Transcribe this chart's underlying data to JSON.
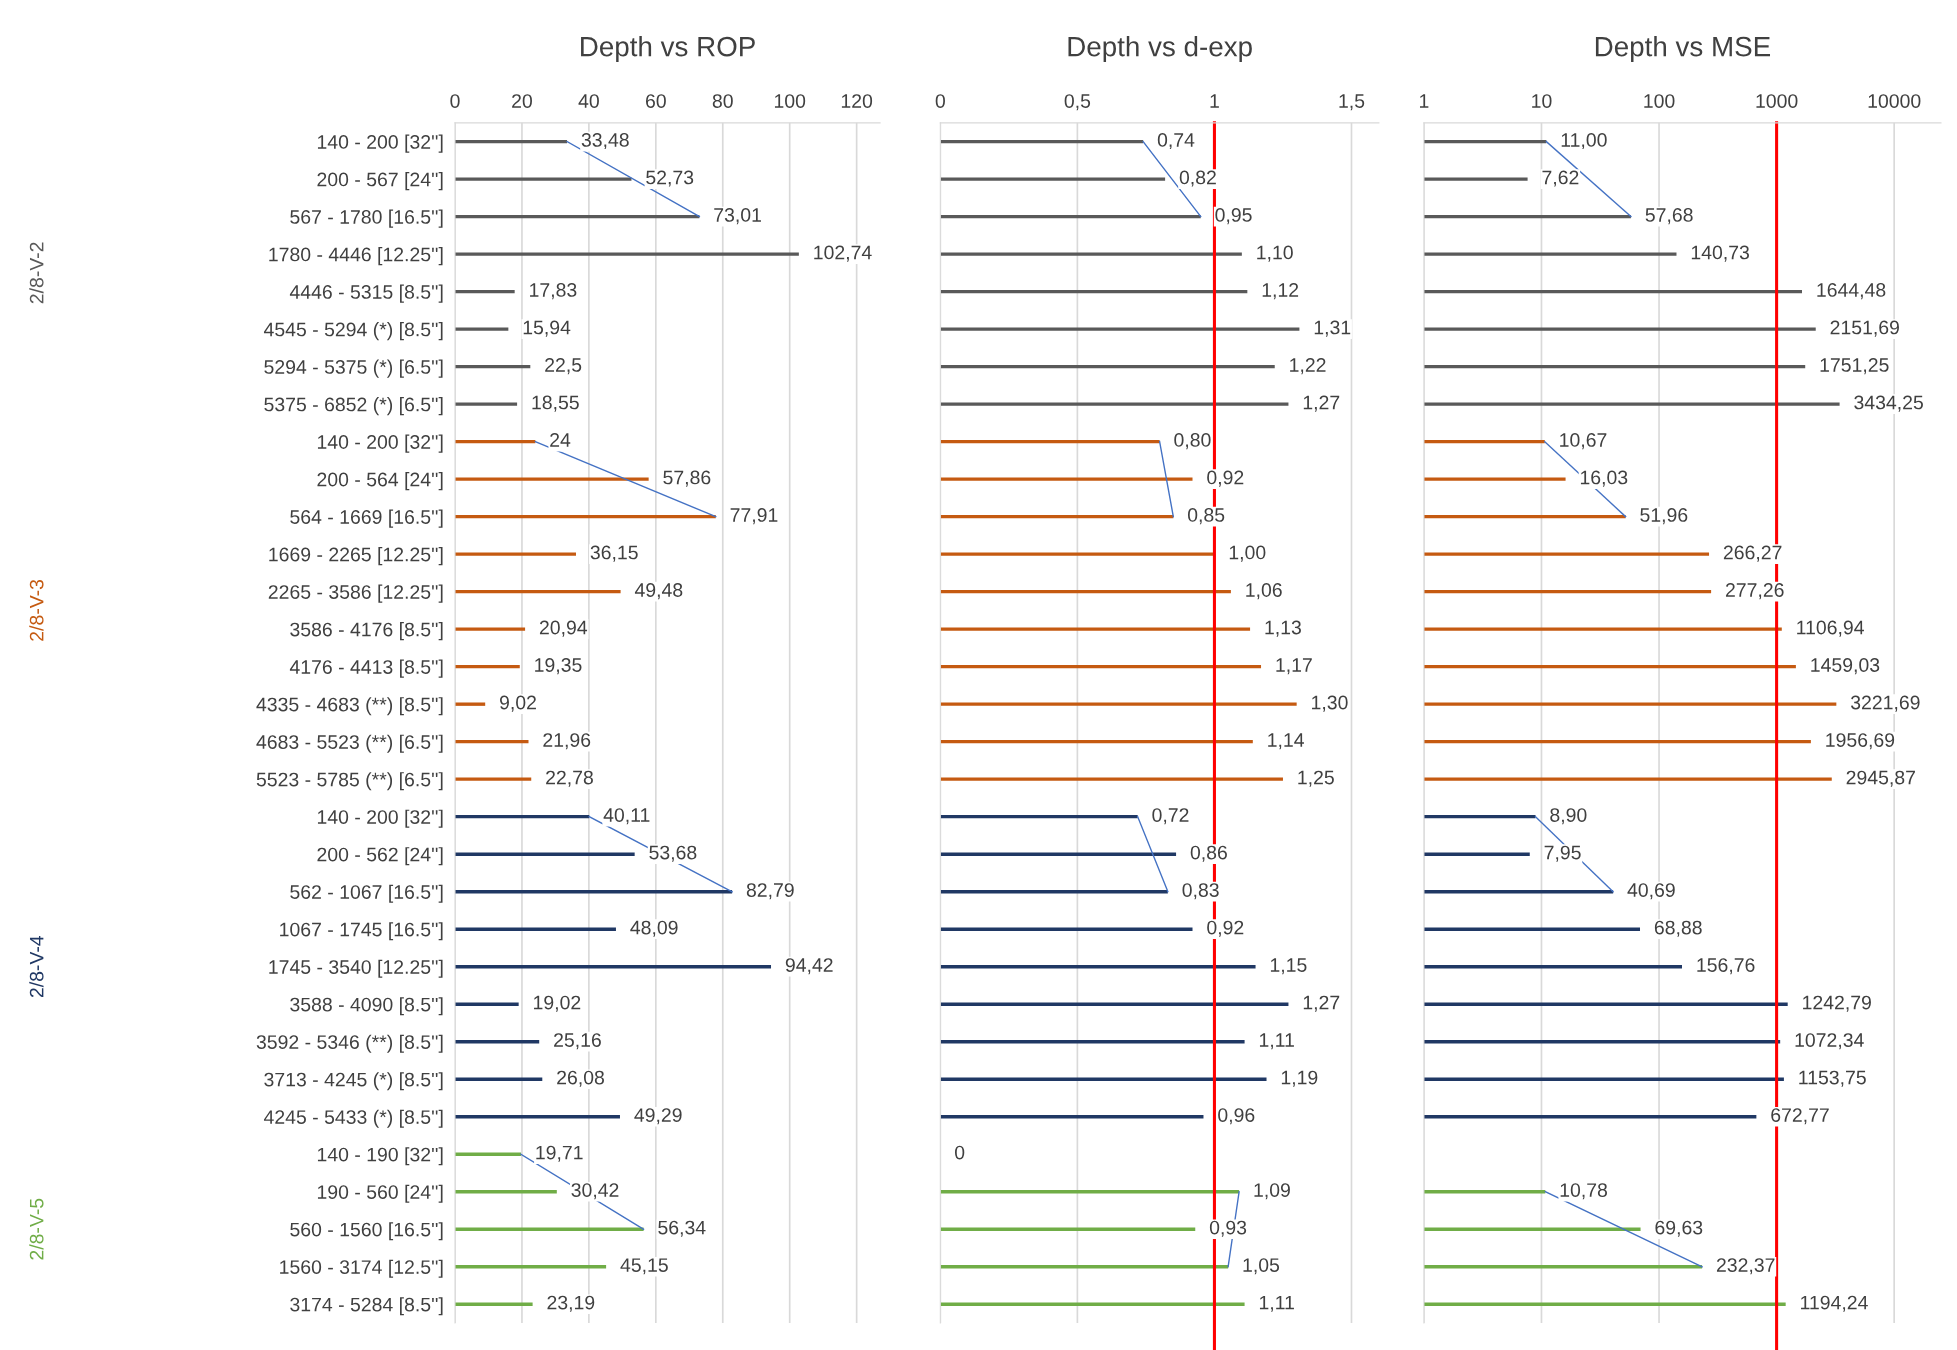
{
  "chart_data": [
    {
      "type": "bar",
      "orientation": "horizontal",
      "title": "Depth vs ROP",
      "grid": "x",
      "xlim": [
        0,
        127
      ],
      "xticks": [
        0,
        20,
        40,
        60,
        80,
        100,
        120
      ],
      "categories": [
        "140 - 200 [32'']",
        "200 - 567 [24'']",
        "567 - 1780 [16.5'']",
        "1780 - 4446 [12.25'']",
        "4446 - 5315 [8.5'']",
        "4545 - 5294 (*) [8.5'']",
        "5294 - 5375 (*) [6.5'']",
        "5375 - 6852 (*) [6.5'']",
        "140 - 200 [32'']",
        "200 - 564 [24'']",
        "564 - 1669 [16.5'']",
        "1669 - 2265 [12.25'']",
        "2265 - 3586 [12.25'']",
        "3586 - 4176 [8.5'']",
        "4176 - 4413 [8.5'']",
        "4335 - 4683 (**) [8.5'']",
        "4683 - 5523 (**) [6.5'']",
        "5523 - 5785 (**) [6.5'']",
        "140 - 200 [32'']",
        "200 - 562 [24'']",
        "562 - 1067 [16.5'']",
        "1067 - 1745 [16.5'']",
        "1745 - 3540 [12.25'']",
        "3588 - 4090 [8.5'']",
        "3592 - 5346 (**) [8.5'']",
        "3713 - 4245 (*) [8.5'']",
        "4245 - 5433 (*) [8.5'']",
        "140 - 190 [32'']",
        "190 - 560 [24'']",
        "560 - 1560 [16.5'']",
        "1560 - 3174 [12.5'']",
        "3174 - 5284 [8.5'']"
      ],
      "series": [
        {
          "name": "2/8-V-2",
          "color": "#595959",
          "values": [
            33.48,
            52.73,
            73.01,
            102.74,
            17.83,
            15.94,
            22.5,
            18.55,
            null,
            null,
            null,
            null,
            null,
            null,
            null,
            null,
            null,
            null,
            null,
            null,
            null,
            null,
            null,
            null,
            null,
            null,
            null,
            null,
            null,
            null,
            null,
            null
          ],
          "value_labels": [
            "33,48",
            "52,73",
            "73,01",
            "102,74",
            "17,83",
            "15,94",
            "22,5",
            "18,55",
            null,
            null,
            null,
            null,
            null,
            null,
            null,
            null,
            null,
            null,
            null,
            null,
            null,
            null,
            null,
            null,
            null,
            null,
            null,
            null,
            null,
            null,
            null,
            null
          ]
        },
        {
          "name": "2/8-V-3",
          "color": "#c55a11",
          "values": [
            null,
            null,
            null,
            null,
            null,
            null,
            null,
            null,
            24,
            57.86,
            77.91,
            36.15,
            49.48,
            20.94,
            19.35,
            9.02,
            21.96,
            22.78,
            null,
            null,
            null,
            null,
            null,
            null,
            null,
            null,
            null,
            null,
            null,
            null,
            null,
            null
          ],
          "value_labels": [
            null,
            null,
            null,
            null,
            null,
            null,
            null,
            null,
            "24",
            "57,86",
            "77,91",
            "36,15",
            "49,48",
            "20,94",
            "19,35",
            "9,02",
            "21,96",
            "22,78",
            null,
            null,
            null,
            null,
            null,
            null,
            null,
            null,
            null,
            null,
            null,
            null,
            null,
            null
          ]
        },
        {
          "name": "2/8-V-4",
          "color": "#203864",
          "values": [
            null,
            null,
            null,
            null,
            null,
            null,
            null,
            null,
            null,
            null,
            null,
            null,
            null,
            null,
            null,
            null,
            null,
            null,
            40.11,
            53.68,
            82.79,
            48.09,
            94.42,
            19.02,
            25.16,
            26.08,
            49.29,
            null,
            null,
            null,
            null,
            null
          ],
          "value_labels": [
            null,
            null,
            null,
            null,
            null,
            null,
            null,
            null,
            null,
            null,
            null,
            null,
            null,
            null,
            null,
            null,
            null,
            null,
            "40,11",
            "53,68",
            "82,79",
            "48,09",
            "94,42",
            "19,02",
            "25,16",
            "26,08",
            "49,29",
            null,
            null,
            null,
            null,
            null
          ]
        },
        {
          "name": "2/8-V-5",
          "color": "#70ad47",
          "values": [
            null,
            null,
            null,
            null,
            null,
            null,
            null,
            null,
            null,
            null,
            null,
            null,
            null,
            null,
            null,
            null,
            null,
            null,
            null,
            null,
            null,
            null,
            null,
            null,
            null,
            null,
            null,
            19.71,
            30.42,
            56.34,
            45.15,
            23.19
          ],
          "value_labels": [
            null,
            null,
            null,
            null,
            null,
            null,
            null,
            null,
            null,
            null,
            null,
            null,
            null,
            null,
            null,
            null,
            null,
            null,
            null,
            null,
            null,
            null,
            null,
            null,
            null,
            null,
            null,
            "19,71",
            "30,42",
            "56,34",
            "45,15",
            "23,19"
          ]
        },
        {
          "type": "line",
          "color": "#4472c4",
          "values": [
            33.48,
            null,
            73.01,
            null,
            null,
            null,
            null,
            null,
            null,
            null,
            null,
            null,
            null,
            null,
            null,
            null,
            null,
            null,
            null,
            null,
            null,
            null,
            null,
            null,
            null,
            null,
            null,
            null,
            null,
            null,
            null,
            null
          ]
        },
        {
          "type": "line",
          "color": "#4472c4",
          "values": [
            null,
            null,
            null,
            null,
            null,
            null,
            null,
            null,
            24,
            null,
            77.91,
            null,
            null,
            null,
            null,
            null,
            null,
            null,
            null,
            null,
            null,
            null,
            null,
            null,
            null,
            null,
            null,
            null,
            null,
            null,
            null,
            null
          ]
        },
        {
          "type": "line",
          "color": "#4472c4",
          "values": [
            null,
            null,
            null,
            null,
            null,
            null,
            null,
            null,
            null,
            null,
            null,
            null,
            null,
            null,
            null,
            null,
            null,
            null,
            40.11,
            null,
            82.79,
            null,
            null,
            null,
            null,
            null,
            null,
            null,
            null,
            null,
            null,
            null
          ]
        },
        {
          "type": "line",
          "color": "#4472c4",
          "values": [
            null,
            null,
            null,
            null,
            null,
            null,
            null,
            null,
            null,
            null,
            null,
            null,
            null,
            null,
            null,
            null,
            null,
            null,
            null,
            null,
            null,
            null,
            null,
            null,
            null,
            null,
            null,
            19.71,
            null,
            56.34,
            null,
            null
          ]
        }
      ]
    },
    {
      "type": "bar",
      "orientation": "horizontal",
      "title": "Depth vs d-exp",
      "grid": "x",
      "xlim": [
        0,
        1.6
      ],
      "xticks": [
        0,
        {
          "value": 0.5,
          "label": "0,5"
        },
        1,
        {
          "value": 1.5,
          "label": "1,5"
        }
      ],
      "tick_labels": "x",
      "ref_lines": [
        {
          "axis": "x",
          "value": 1,
          "color": "#ff0000"
        }
      ],
      "series": [
        {
          "color": "#595959",
          "values": [
            0.74,
            0.82,
            0.95,
            1.1,
            1.12,
            1.31,
            1.22,
            1.27,
            null,
            null,
            null,
            null,
            null,
            null,
            null,
            null,
            null,
            null,
            null,
            null,
            null,
            null,
            null,
            null,
            null,
            null,
            null,
            null,
            null,
            null,
            null,
            null
          ],
          "value_labels": [
            "0,74",
            "0,82",
            "0,95",
            "1,10",
            "1,12",
            "1,31",
            "1,22",
            "1,27",
            null,
            null,
            null,
            null,
            null,
            null,
            null,
            null,
            null,
            null,
            null,
            null,
            null,
            null,
            null,
            null,
            null,
            null,
            null,
            null,
            null,
            null,
            null,
            null
          ]
        },
        {
          "color": "#c55a11",
          "values": [
            null,
            null,
            null,
            null,
            null,
            null,
            null,
            null,
            0.8,
            0.92,
            0.85,
            1.0,
            1.06,
            1.13,
            1.17,
            1.3,
            1.14,
            1.25,
            null,
            null,
            null,
            null,
            null,
            null,
            null,
            null,
            null,
            null,
            null,
            null,
            null,
            null
          ],
          "value_labels": [
            null,
            null,
            null,
            null,
            null,
            null,
            null,
            null,
            "0,80",
            "0,92",
            "0,85",
            "1,00",
            "1,06",
            "1,13",
            "1,17",
            "1,30",
            "1,14",
            "1,25",
            null,
            null,
            null,
            null,
            null,
            null,
            null,
            null,
            null,
            null,
            null,
            null,
            null,
            null
          ]
        },
        {
          "color": "#203864",
          "values": [
            null,
            null,
            null,
            null,
            null,
            null,
            null,
            null,
            null,
            null,
            null,
            null,
            null,
            null,
            null,
            null,
            null,
            null,
            0.72,
            0.86,
            0.83,
            0.92,
            1.15,
            1.27,
            1.11,
            1.19,
            0.96,
            null,
            null,
            null,
            null,
            null
          ],
          "value_labels": [
            null,
            null,
            null,
            null,
            null,
            null,
            null,
            null,
            null,
            null,
            null,
            null,
            null,
            null,
            null,
            null,
            null,
            null,
            "0,72",
            "0,86",
            "0,83",
            "0,92",
            "1,15",
            "1,27",
            "1,11",
            "1,19",
            "0,96",
            null,
            null,
            null,
            null,
            null
          ]
        },
        {
          "color": "#70ad47",
          "values": [
            null,
            null,
            null,
            null,
            null,
            null,
            null,
            null,
            null,
            null,
            null,
            null,
            null,
            null,
            null,
            null,
            null,
            null,
            null,
            null,
            null,
            null,
            null,
            null,
            null,
            null,
            null,
            0,
            1.09,
            0.93,
            1.05,
            1.11
          ],
          "value_labels": [
            null,
            null,
            null,
            null,
            null,
            null,
            null,
            null,
            null,
            null,
            null,
            null,
            null,
            null,
            null,
            null,
            null,
            null,
            null,
            null,
            null,
            null,
            null,
            null,
            null,
            null,
            null,
            "0",
            "1,09",
            "0,93",
            "1,05",
            "1,11"
          ]
        },
        {
          "type": "line",
          "color": "#4472c4",
          "values": [
            0.74,
            null,
            0.95,
            null,
            null,
            null,
            null,
            null,
            null,
            null,
            null,
            null,
            null,
            null,
            null,
            null,
            null,
            null,
            null,
            null,
            null,
            null,
            null,
            null,
            null,
            null,
            null,
            null,
            null,
            null,
            null,
            null
          ]
        },
        {
          "type": "line",
          "color": "#4472c4",
          "values": [
            null,
            null,
            null,
            null,
            null,
            null,
            null,
            null,
            0.8,
            null,
            0.85,
            null,
            null,
            null,
            null,
            null,
            null,
            null,
            null,
            null,
            null,
            null,
            null,
            null,
            null,
            null,
            null,
            null,
            null,
            null,
            null,
            null
          ]
        },
        {
          "type": "line",
          "color": "#4472c4",
          "values": [
            null,
            null,
            null,
            null,
            null,
            null,
            null,
            null,
            null,
            null,
            null,
            null,
            null,
            null,
            null,
            null,
            null,
            null,
            0.72,
            null,
            0.83,
            null,
            null,
            null,
            null,
            null,
            null,
            null,
            null,
            null,
            null,
            null
          ]
        },
        {
          "type": "line",
          "color": "#4472c4",
          "values": [
            null,
            null,
            null,
            null,
            null,
            null,
            null,
            null,
            null,
            null,
            null,
            null,
            null,
            null,
            null,
            null,
            null,
            null,
            null,
            null,
            null,
            null,
            null,
            null,
            null,
            null,
            null,
            null,
            1.09,
            null,
            1.05,
            null
          ]
        }
      ]
    },
    {
      "type": "bar",
      "orientation": "horizontal",
      "title": "Depth vs MSE",
      "grid": "x",
      "log": "x",
      "xlim": [
        1,
        25000
      ],
      "xticks": [
        1,
        10,
        100,
        1000,
        10000
      ],
      "tick_labels": "x",
      "ref_lines": [
        {
          "axis": "x",
          "value": 1000,
          "color": "#ff0000"
        }
      ],
      "series": [
        {
          "color": "#595959",
          "values": [
            11.0,
            7.62,
            57.68,
            140.73,
            1644.48,
            2151.69,
            1751.25,
            3434.25,
            null,
            null,
            null,
            null,
            null,
            null,
            null,
            null,
            null,
            null,
            null,
            null,
            null,
            null,
            null,
            null,
            null,
            null,
            null,
            null,
            null,
            null,
            null,
            null
          ],
          "value_labels": [
            "11,00",
            "7,62",
            "57,68",
            "140,73",
            "1644,48",
            "2151,69",
            "1751,25",
            "3434,25",
            null,
            null,
            null,
            null,
            null,
            null,
            null,
            null,
            null,
            null,
            null,
            null,
            null,
            null,
            null,
            null,
            null,
            null,
            null,
            null,
            null,
            null,
            null,
            null
          ]
        },
        {
          "color": "#c55a11",
          "values": [
            null,
            null,
            null,
            null,
            null,
            null,
            null,
            null,
            10.67,
            16.03,
            51.96,
            266.27,
            277.26,
            1106.94,
            1459.03,
            3221.69,
            1956.69,
            2945.87,
            null,
            null,
            null,
            null,
            null,
            null,
            null,
            null,
            null,
            null,
            null,
            null,
            null,
            null
          ],
          "value_labels": [
            null,
            null,
            null,
            null,
            null,
            null,
            null,
            null,
            "10,67",
            "16,03",
            "51,96",
            "266,27",
            "277,26",
            "1106,94",
            "1459,03",
            "3221,69",
            "1956,69",
            "2945,87",
            null,
            null,
            null,
            null,
            null,
            null,
            null,
            null,
            null,
            null,
            null,
            null,
            null,
            null
          ]
        },
        {
          "color": "#203864",
          "values": [
            null,
            null,
            null,
            null,
            null,
            null,
            null,
            null,
            null,
            null,
            null,
            null,
            null,
            null,
            null,
            null,
            null,
            null,
            8.9,
            7.95,
            40.69,
            68.88,
            156.76,
            1242.79,
            1072.34,
            1153.75,
            672.77,
            null,
            null,
            null,
            null,
            null
          ],
          "value_labels": [
            null,
            null,
            null,
            null,
            null,
            null,
            null,
            null,
            null,
            null,
            null,
            null,
            null,
            null,
            null,
            null,
            null,
            null,
            "8,90",
            "7,95",
            "40,69",
            "68,88",
            "156,76",
            "1242,79",
            "1072,34",
            "1153,75",
            "672,77",
            null,
            null,
            null,
            null,
            null
          ]
        },
        {
          "color": "#70ad47",
          "values": [
            null,
            null,
            null,
            null,
            null,
            null,
            null,
            null,
            null,
            null,
            null,
            null,
            null,
            null,
            null,
            null,
            null,
            null,
            null,
            null,
            null,
            null,
            null,
            null,
            null,
            null,
            null,
            null,
            10.78,
            69.63,
            232.37,
            1194.24
          ],
          "value_labels": [
            null,
            null,
            null,
            null,
            null,
            null,
            null,
            null,
            null,
            null,
            null,
            null,
            null,
            null,
            null,
            null,
            null,
            null,
            null,
            null,
            null,
            null,
            null,
            null,
            null,
            null,
            null,
            null,
            "10,78",
            "69,63",
            "232,37",
            "1194,24"
          ]
        },
        {
          "type": "line",
          "color": "#4472c4",
          "values": [
            11.0,
            null,
            57.68,
            null,
            null,
            null,
            null,
            null,
            null,
            null,
            null,
            null,
            null,
            null,
            null,
            null,
            null,
            null,
            null,
            null,
            null,
            null,
            null,
            null,
            null,
            null,
            null,
            null,
            null,
            null,
            null,
            null
          ]
        },
        {
          "type": "line",
          "color": "#4472c4",
          "values": [
            null,
            null,
            null,
            null,
            null,
            null,
            null,
            null,
            10.67,
            null,
            51.96,
            null,
            null,
            null,
            null,
            null,
            null,
            null,
            null,
            null,
            null,
            null,
            null,
            null,
            null,
            null,
            null,
            null,
            null,
            null,
            null,
            null
          ]
        },
        {
          "type": "line",
          "color": "#4472c4",
          "values": [
            null,
            null,
            null,
            null,
            null,
            null,
            null,
            null,
            null,
            null,
            null,
            null,
            null,
            null,
            null,
            null,
            null,
            null,
            8.9,
            null,
            40.69,
            null,
            null,
            null,
            null,
            null,
            null,
            null,
            null,
            null,
            null,
            null
          ]
        },
        {
          "type": "line",
          "color": "#4472c4",
          "values": [
            null,
            null,
            null,
            null,
            null,
            null,
            null,
            null,
            null,
            null,
            null,
            null,
            null,
            null,
            null,
            null,
            null,
            null,
            null,
            null,
            null,
            null,
            null,
            null,
            null,
            null,
            null,
            null,
            10.78,
            null,
            232.37,
            null
          ]
        }
      ]
    }
  ]
}
